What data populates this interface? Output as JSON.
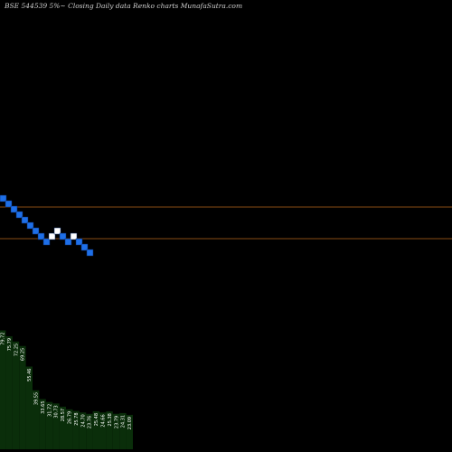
{
  "chart_data": {
    "type": "bar",
    "title": "BSE 544539 5%~ Closing Daily data Renko charts MunafaSutra.com",
    "reference_lines": {
      "color": "#b5651d"
    },
    "renko_bricks": {
      "sequence": [
        "down",
        "down",
        "down",
        "down",
        "down",
        "down",
        "down",
        "down",
        "down",
        "up",
        "up",
        "down",
        "down",
        "up",
        "down",
        "down",
        "down"
      ],
      "colors": {
        "up": "#ffffff",
        "down": "#1e6fe8"
      }
    },
    "volume": {
      "values": [
        79.72,
        75.79,
        72.25,
        69.25,
        55.46,
        39.55,
        33.65,
        31.72,
        30.73,
        28.57,
        26.79,
        25.78,
        24.7,
        23.76,
        25.48,
        24.66,
        25.38,
        23.79,
        24.31,
        23.09
      ],
      "bar_color": "#0a2e0a",
      "label_color": "#ffffff"
    }
  }
}
